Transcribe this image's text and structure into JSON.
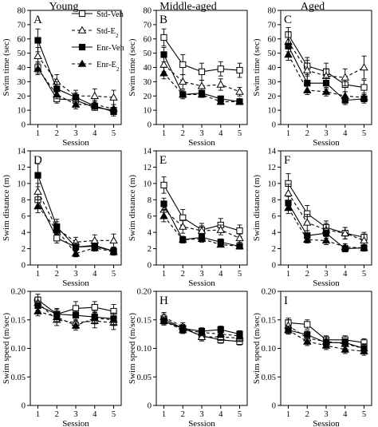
{
  "column_titles": [
    "Young",
    "Middle-aged",
    "Aged"
  ],
  "legend": {
    "series": [
      {
        "name": "Std-Veh",
        "marker": "square-open",
        "dash": "solid"
      },
      {
        "name": "Std-E",
        "sub": "2",
        "marker": "triangle-open",
        "dash": "dashed"
      },
      {
        "name": "Enr-Veh",
        "marker": "square-filled",
        "dash": "solid"
      },
      {
        "name": "Enr-E",
        "sub": "2",
        "marker": "triangle-filled",
        "dash": "dashed"
      }
    ]
  },
  "chart_data": [
    {
      "type": "line",
      "panel": "A",
      "xlabel": "Session",
      "ylabel": "Swim time (sec)",
      "x": [
        1,
        2,
        3,
        4,
        5
      ],
      "xlim": [
        0.6,
        5.4
      ],
      "ylim": [
        0,
        80
      ],
      "yticks": [
        0,
        10,
        20,
        30,
        40,
        50,
        60,
        70,
        80
      ],
      "series": [
        {
          "name": "Std-Veh",
          "values": [
            40,
            18,
            17,
            12,
            10
          ],
          "err": [
            4,
            3,
            3,
            2,
            2
          ]
        },
        {
          "name": "Std-E2",
          "values": [
            48,
            30,
            20,
            20,
            19
          ],
          "err": [
            6,
            5,
            4,
            5,
            5
          ]
        },
        {
          "name": "Enr-Veh",
          "values": [
            59,
            25,
            19,
            13,
            9
          ],
          "err": [
            8,
            5,
            3,
            3,
            3
          ]
        },
        {
          "name": "Enr-E2",
          "values": [
            39,
            21,
            14,
            14,
            11
          ],
          "err": [
            4,
            3,
            3,
            3,
            3
          ]
        }
      ]
    },
    {
      "type": "line",
      "panel": "B",
      "xlabel": "Session",
      "ylabel": "Swim time (sec)",
      "x": [
        1,
        2,
        3,
        4,
        5
      ],
      "xlim": [
        0.6,
        5.4
      ],
      "ylim": [
        0,
        80
      ],
      "yticks": [
        0,
        10,
        20,
        30,
        40,
        50,
        60,
        70,
        80
      ],
      "series": [
        {
          "name": "Std-Veh",
          "values": [
            61,
            42,
            37,
            39,
            38
          ],
          "err": [
            6,
            7,
            6,
            5,
            5
          ]
        },
        {
          "name": "Std-E2",
          "values": [
            42,
            30,
            27,
            28,
            23
          ],
          "err": [
            5,
            5,
            4,
            4,
            3
          ]
        },
        {
          "name": "Enr-Veh",
          "values": [
            49,
            21,
            22,
            18,
            16
          ],
          "err": [
            5,
            3,
            2,
            2,
            2
          ]
        },
        {
          "name": "Enr-E2",
          "values": [
            36,
            21,
            21,
            16,
            16
          ],
          "err": [
            4,
            2,
            2,
            2,
            2
          ]
        }
      ]
    },
    {
      "type": "line",
      "panel": "C",
      "xlabel": "Session",
      "ylabel": "Swim time (sec)",
      "x": [
        1,
        2,
        3,
        4,
        5
      ],
      "xlim": [
        0.6,
        5.4
      ],
      "ylim": [
        0,
        80
      ],
      "yticks": [
        0,
        10,
        20,
        30,
        40,
        50,
        60,
        70,
        80
      ],
      "series": [
        {
          "name": "Std-Veh",
          "values": [
            63,
            41,
            37,
            28,
            26
          ],
          "err": [
            5,
            6,
            6,
            5,
            5
          ]
        },
        {
          "name": "Std-E2",
          "values": [
            58,
            38,
            34,
            33,
            40
          ],
          "err": [
            7,
            7,
            5,
            6,
            8
          ]
        },
        {
          "name": "Enr-Veh",
          "values": [
            55,
            29,
            29,
            17,
            18
          ],
          "err": [
            6,
            5,
            4,
            3,
            3
          ]
        },
        {
          "name": "Enr-E2",
          "values": [
            49,
            24,
            23,
            20,
            19
          ],
          "err": [
            4,
            3,
            3,
            3,
            3
          ]
        }
      ]
    },
    {
      "type": "line",
      "panel": "D",
      "xlabel": "Session",
      "ylabel": "Swim distance (m)",
      "x": [
        1,
        2,
        3,
        4,
        5
      ],
      "xlim": [
        0.6,
        5.4
      ],
      "ylim": [
        0,
        14
      ],
      "yticks": [
        0,
        2,
        4,
        6,
        8,
        10,
        12,
        14
      ],
      "series": [
        {
          "name": "Std-Veh",
          "values": [
            8,
            3.3,
            2.2,
            2.4,
            1.7
          ],
          "err": [
            0.8,
            0.6,
            0.5,
            0.4,
            0.4
          ]
        },
        {
          "name": "Std-E2",
          "values": [
            9,
            4.5,
            2.8,
            3,
            3
          ],
          "err": [
            1,
            0.8,
            0.6,
            0.7,
            0.8
          ]
        },
        {
          "name": "Enr-Veh",
          "values": [
            11,
            4.7,
            2.2,
            2.3,
            1.7
          ],
          "err": [
            1.4,
            0.9,
            0.5,
            0.4,
            0.4
          ]
        },
        {
          "name": "Enr-E2",
          "values": [
            7.2,
            4.3,
            1.4,
            2.1,
            1.6
          ],
          "err": [
            0.8,
            0.6,
            0.4,
            0.4,
            0.4
          ]
        }
      ]
    },
    {
      "type": "line",
      "panel": "E",
      "xlabel": "Session",
      "ylabel": "Swim distance (m)",
      "x": [
        1,
        2,
        3,
        4,
        5
      ],
      "xlim": [
        0.6,
        5.4
      ],
      "ylim": [
        0,
        14
      ],
      "yticks": [
        0,
        2,
        4,
        6,
        8,
        10,
        12,
        14
      ],
      "series": [
        {
          "name": "Std-Veh",
          "values": [
            9.8,
            5.8,
            4.3,
            4.9,
            4.2
          ],
          "err": [
            1,
            1,
            0.8,
            0.8,
            0.7
          ]
        },
        {
          "name": "Std-E2",
          "values": [
            6.8,
            4.7,
            4.2,
            4.3,
            3.3
          ],
          "err": [
            0.8,
            0.8,
            0.6,
            0.6,
            0.5
          ]
        },
        {
          "name": "Enr-Veh",
          "values": [
            7.5,
            3.1,
            3.4,
            2.8,
            2.3
          ],
          "err": [
            0.7,
            0.4,
            0.4,
            0.4,
            0.3
          ]
        },
        {
          "name": "Enr-E2",
          "values": [
            6,
            3.1,
            3.2,
            2.5,
            2.3
          ],
          "err": [
            0.7,
            0.4,
            0.4,
            0.3,
            0.3
          ]
        }
      ]
    },
    {
      "type": "line",
      "panel": "F",
      "xlabel": "Session",
      "ylabel": "Swim distance (m)",
      "x": [
        1,
        2,
        3,
        4,
        5
      ],
      "xlim": [
        0.6,
        5.4
      ],
      "ylim": [
        0,
        14
      ],
      "yticks": [
        0,
        2,
        4,
        6,
        8,
        10,
        12,
        14
      ],
      "series": [
        {
          "name": "Std-Veh",
          "values": [
            10,
            6.3,
            4.6,
            3.9,
            3.4
          ],
          "err": [
            1.2,
            1,
            0.8,
            0.7,
            0.6
          ]
        },
        {
          "name": "Std-E2",
          "values": [
            8.8,
            5.2,
            4.3,
            3.9,
            3
          ],
          "err": [
            1.1,
            1,
            0.8,
            0.7,
            0.8
          ]
        },
        {
          "name": "Enr-Veh",
          "values": [
            7.6,
            3.6,
            3.9,
            2,
            2.1
          ],
          "err": [
            0.8,
            0.6,
            0.6,
            0.4,
            0.4
          ]
        },
        {
          "name": "Enr-E2",
          "values": [
            7,
            3.1,
            3,
            2.2,
            2.1
          ],
          "err": [
            0.7,
            0.4,
            0.5,
            0.4,
            0.4
          ]
        }
      ]
    },
    {
      "type": "line",
      "panel": "G",
      "xlabel": "Session",
      "ylabel": "Swim speed (m/sec)",
      "x": [
        1,
        2,
        3,
        4,
        5
      ],
      "xlim": [
        0.6,
        5.4
      ],
      "ylim": [
        0,
        0.2
      ],
      "yticks": [
        0,
        0.05,
        0.1,
        0.15,
        0.2
      ],
      "ytick_labels": [
        "0",
        "0.05",
        "0.10",
        "0.15",
        "0.20"
      ],
      "series": [
        {
          "name": "Std-Veh",
          "values": [
            0.185,
            0.16,
            0.17,
            0.172,
            0.165
          ],
          "err": [
            0.01,
            0.01,
            0.012,
            0.01,
            0.012
          ]
        },
        {
          "name": "Std-E2",
          "values": [
            0.18,
            0.15,
            0.145,
            0.148,
            0.145
          ],
          "err": [
            0.01,
            0.01,
            0.01,
            0.012,
            0.012
          ]
        },
        {
          "name": "Enr-Veh",
          "values": [
            0.175,
            0.16,
            0.158,
            0.155,
            0.152
          ],
          "err": [
            0.008,
            0.008,
            0.008,
            0.01,
            0.01
          ]
        },
        {
          "name": "Enr-E2",
          "values": [
            0.165,
            0.155,
            0.14,
            0.153,
            0.15
          ],
          "err": [
            0.008,
            0.008,
            0.008,
            0.01,
            0.01
          ]
        }
      ]
    },
    {
      "type": "line",
      "panel": "H",
      "xlabel": "Session",
      "ylabel": "Swim speed (m/sec)",
      "x": [
        1,
        2,
        3,
        4,
        5
      ],
      "xlim": [
        0.6,
        5.4
      ],
      "ylim": [
        0,
        0.2
      ],
      "yticks": [
        0,
        0.05,
        0.1,
        0.15,
        0.2
      ],
      "ytick_labels": [
        "0",
        "0.05",
        "0.10",
        "0.15",
        "0.20"
      ],
      "series": [
        {
          "name": "Std-Veh",
          "values": [
            0.152,
            0.135,
            0.122,
            0.115,
            0.112
          ],
          "err": [
            0.008,
            0.007,
            0.007,
            0.006,
            0.006
          ]
        },
        {
          "name": "Std-E2",
          "values": [
            0.155,
            0.138,
            0.12,
            0.12,
            0.118
          ],
          "err": [
            0.008,
            0.007,
            0.007,
            0.006,
            0.006
          ]
        },
        {
          "name": "Enr-Veh",
          "values": [
            0.148,
            0.135,
            0.13,
            0.133,
            0.125
          ],
          "err": [
            0.007,
            0.006,
            0.006,
            0.006,
            0.006
          ]
        },
        {
          "name": "Enr-E2",
          "values": [
            0.148,
            0.132,
            0.128,
            0.125,
            0.122
          ],
          "err": [
            0.007,
            0.006,
            0.006,
            0.006,
            0.006
          ]
        }
      ]
    },
    {
      "type": "line",
      "panel": "I",
      "xlabel": "Session",
      "ylabel": "Swim speed (m/sec)",
      "x": [
        1,
        2,
        3,
        4,
        5
      ],
      "xlim": [
        0.6,
        5.4
      ],
      "ylim": [
        0,
        0.2
      ],
      "yticks": [
        0,
        0.05,
        0.1,
        0.15,
        0.2
      ],
      "ytick_labels": [
        "0",
        "0.05",
        "0.10",
        "0.15",
        "0.20"
      ],
      "series": [
        {
          "name": "Std-Veh",
          "values": [
            0.145,
            0.142,
            0.115,
            0.115,
            0.11
          ],
          "err": [
            0.008,
            0.008,
            0.007,
            0.007,
            0.007
          ]
        },
        {
          "name": "Std-E2",
          "values": [
            0.14,
            0.118,
            0.112,
            0.108,
            0.1
          ],
          "err": [
            0.01,
            0.01,
            0.008,
            0.008,
            0.008
          ]
        },
        {
          "name": "Enr-Veh",
          "values": [
            0.132,
            0.124,
            0.11,
            0.11,
            0.1
          ],
          "err": [
            0.007,
            0.007,
            0.007,
            0.007,
            0.007
          ]
        },
        {
          "name": "Enr-E2",
          "values": [
            0.132,
            0.112,
            0.105,
            0.098,
            0.095
          ],
          "err": [
            0.007,
            0.007,
            0.007,
            0.007,
            0.007
          ]
        }
      ]
    }
  ]
}
